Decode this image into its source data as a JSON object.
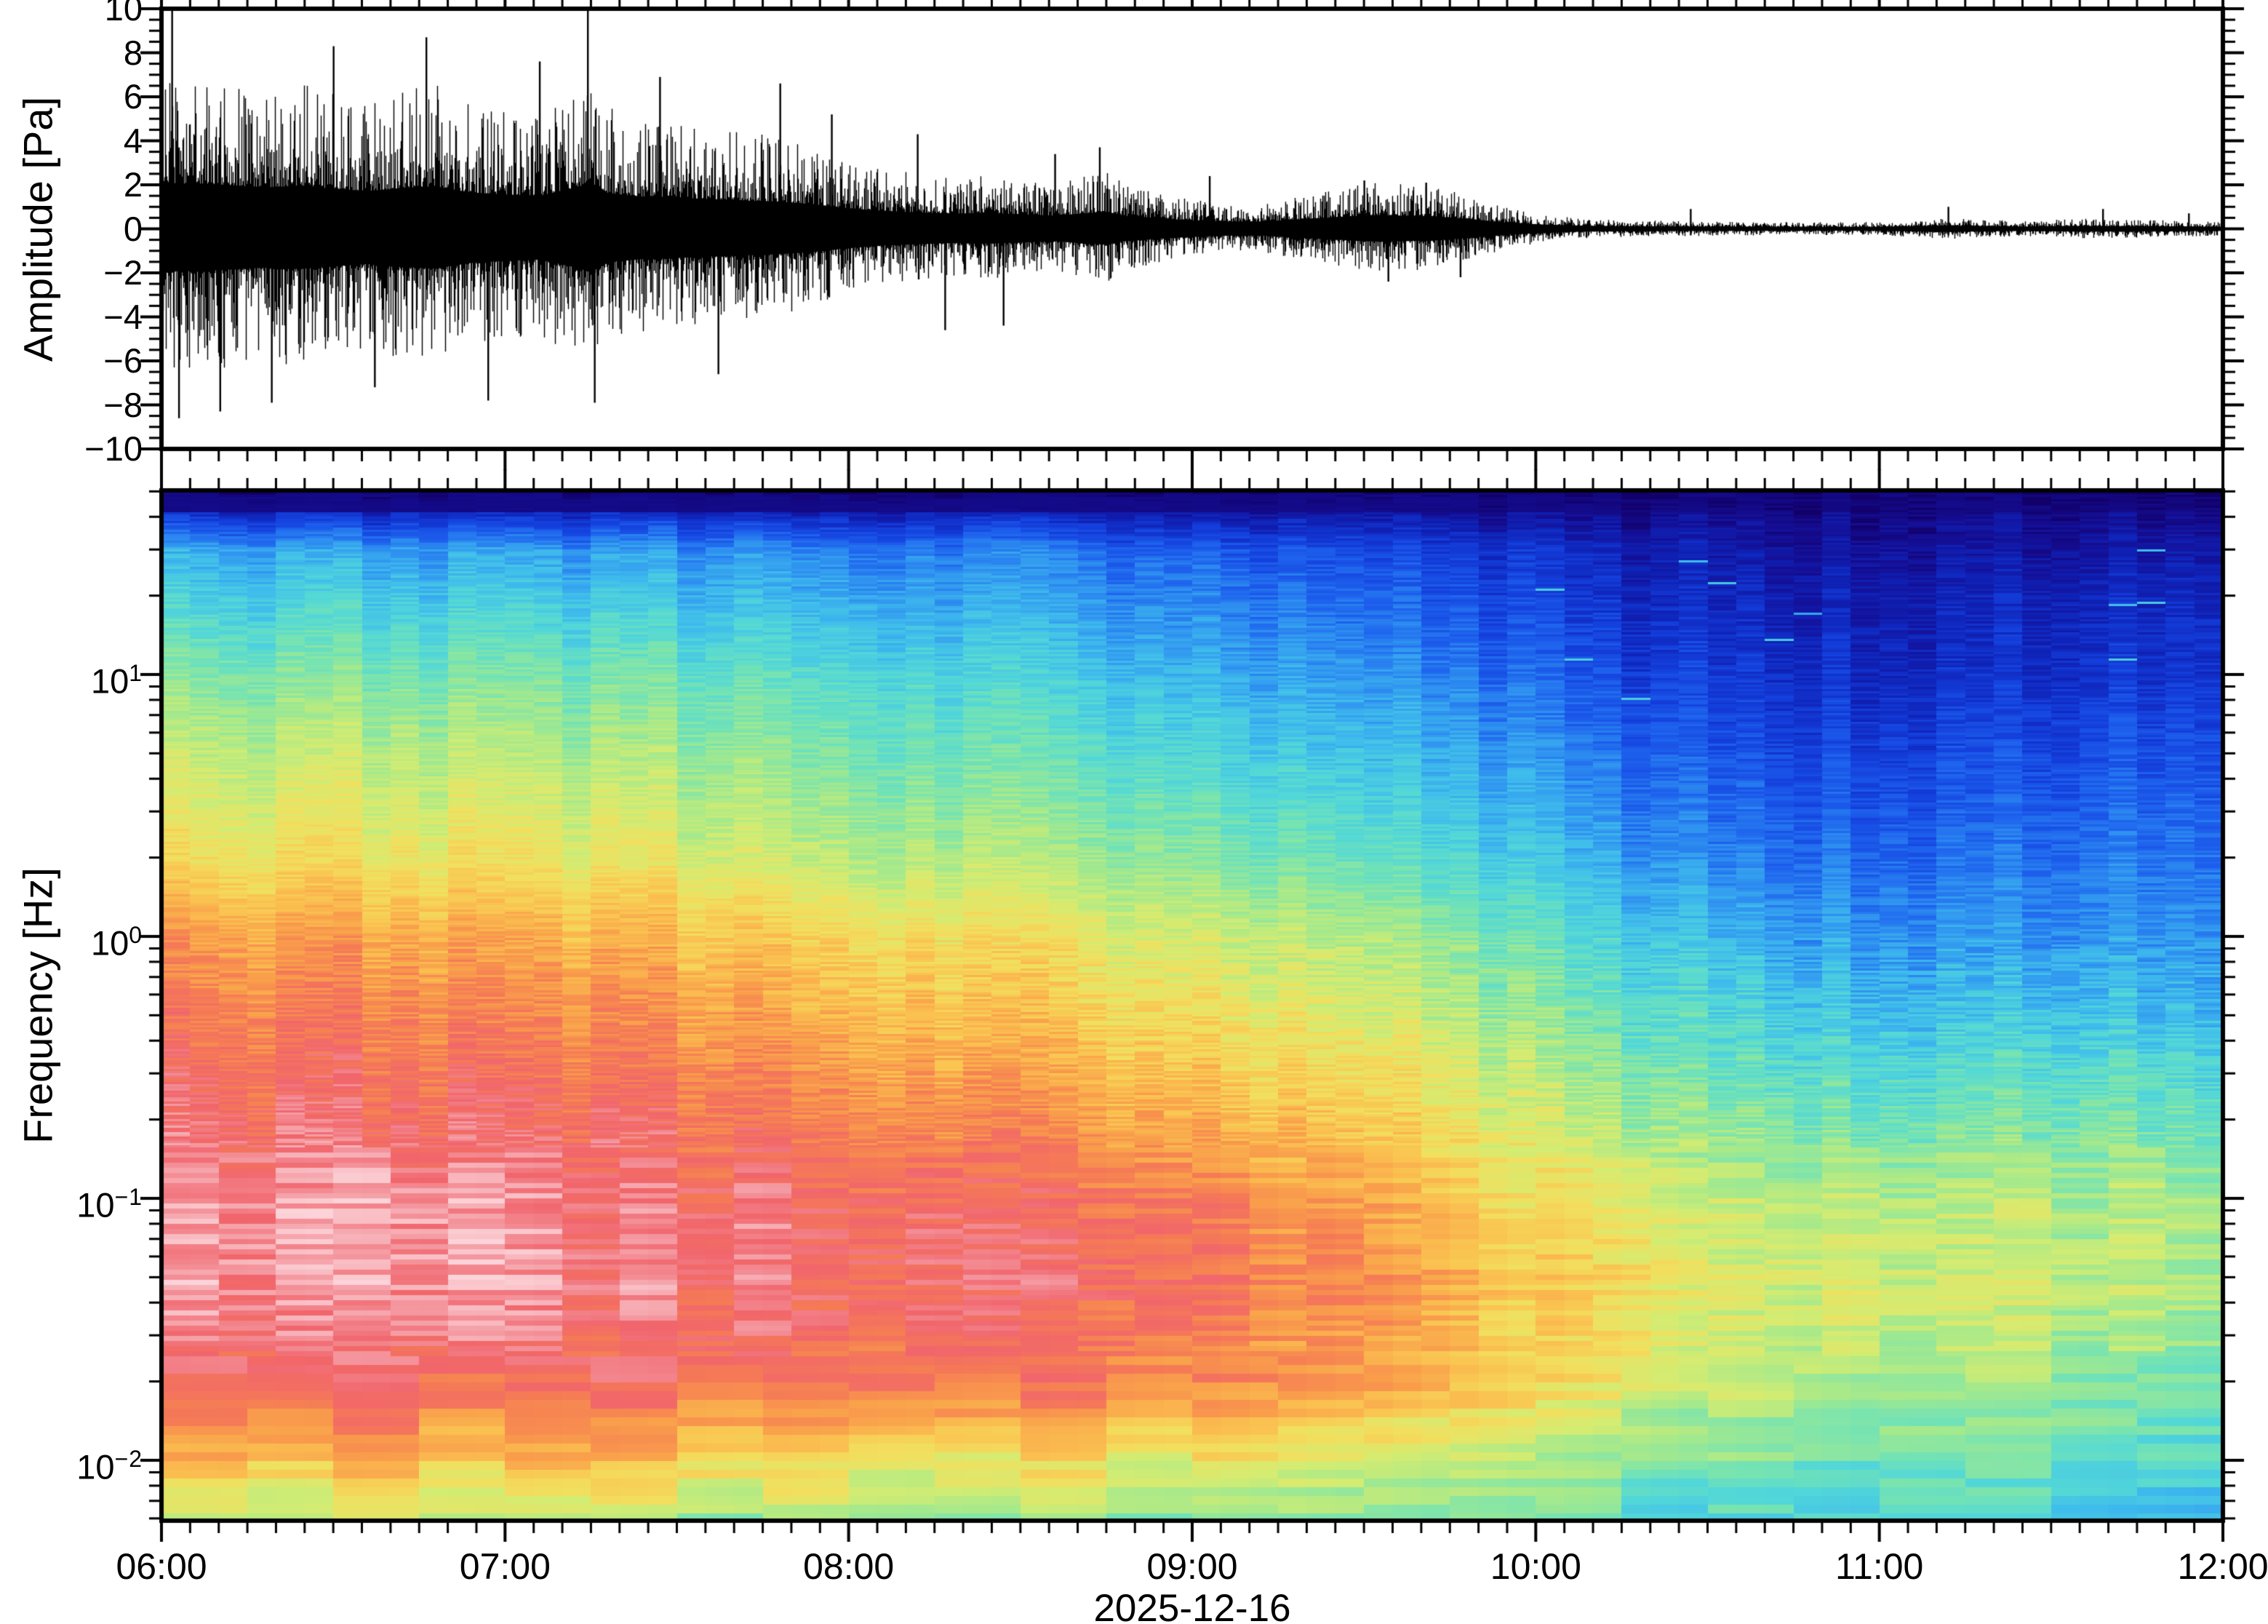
{
  "figure": {
    "background_color": "#ffffff",
    "frame_color": "#000000",
    "date_label": "2025-12-16",
    "waveform_panel": {
      "ylabel": "Amplitude [Pa]",
      "trace_color": "#000000",
      "ylim": [
        -10,
        10
      ],
      "ytick_values": [
        10,
        8,
        6,
        4,
        2,
        0,
        -2,
        -4,
        -6,
        -8,
        -10
      ],
      "ytick_labels": [
        "10",
        "8",
        "6",
        "4",
        "2",
        "0",
        "−2",
        "−4",
        "−6",
        "−8",
        "−10"
      ],
      "minor_tick_step_pa": 0.5
    },
    "spectrogram_panel": {
      "ylabel": "Frequency [Hz]",
      "freq_range_hz": [
        0.0059,
        50.4
      ],
      "ytick_labels": [
        {
          "base": "10",
          "exp": "1"
        },
        {
          "base": "10",
          "exp": "0"
        },
        {
          "base": "10",
          "exp": "−1"
        },
        {
          "base": "10",
          "exp": "−2"
        }
      ]
    },
    "time_axis": {
      "start": "06:00",
      "end": "12:00",
      "tick_labels": [
        "06:00",
        "07:00",
        "08:00",
        "09:00",
        "10:00",
        "11:00",
        "12:00"
      ],
      "minor_tick_minutes": 5
    }
  },
  "chart_data": [
    {
      "type": "line",
      "name": "infrasound-waveform",
      "ylabel": "Amplitude [Pa]",
      "xlabel": "2025-12-16",
      "xlim_hours": [
        6,
        12
      ],
      "ylim": [
        -10,
        10
      ],
      "x_hours": [
        6.0,
        6.05,
        6.1,
        6.2,
        6.3,
        6.4,
        6.5,
        6.6,
        6.7,
        6.8,
        6.9,
        7.0,
        7.1,
        7.2,
        7.25,
        7.3,
        7.4,
        7.5,
        7.6,
        7.7,
        7.8,
        7.9,
        8.0,
        8.1,
        8.2,
        8.3,
        8.4,
        8.5,
        8.6,
        8.7,
        8.75,
        8.8,
        8.9,
        9.0,
        9.1,
        9.2,
        9.3,
        9.4,
        9.5,
        9.55,
        9.6,
        9.7,
        9.8,
        9.9,
        10.0,
        10.1,
        10.2,
        10.4,
        10.6,
        10.8,
        11.0,
        11.2,
        11.4,
        11.6,
        11.8,
        12.0
      ],
      "envelope_peak_pa": [
        7.2,
        6.8,
        6.9,
        6.6,
        6.3,
        6.5,
        6.1,
        5.7,
        6.2,
        6.4,
        5.5,
        5.2,
        5.0,
        6.2,
        7.0,
        5.4,
        4.9,
        4.7,
        4.5,
        4.3,
        4.1,
        3.7,
        3.1,
        2.7,
        2.5,
        2.3,
        2.4,
        2.2,
        2.0,
        2.4,
        2.6,
        2.0,
        1.6,
        1.3,
        1.1,
        1.1,
        1.4,
        1.7,
        2.0,
        2.1,
        2.0,
        1.9,
        1.5,
        1.0,
        0.7,
        0.5,
        0.4,
        0.35,
        0.32,
        0.3,
        0.3,
        0.5,
        0.35,
        0.45,
        0.4,
        0.32
      ],
      "spikes_hour_pa": [
        [
          6.03,
          10.0
        ],
        [
          6.05,
          -8.6
        ],
        [
          6.17,
          -8.3
        ],
        [
          6.32,
          -7.9
        ],
        [
          6.5,
          8.3
        ],
        [
          6.62,
          -7.2
        ],
        [
          6.77,
          8.7
        ],
        [
          6.95,
          -7.8
        ],
        [
          7.1,
          7.6
        ],
        [
          7.24,
          10.0
        ],
        [
          7.26,
          -7.9
        ],
        [
          7.45,
          6.9
        ],
        [
          7.62,
          -6.6
        ],
        [
          7.8,
          6.6
        ],
        [
          7.95,
          5.2
        ],
        [
          8.2,
          4.3
        ],
        [
          8.28,
          -4.6
        ],
        [
          8.45,
          -4.4
        ],
        [
          8.6,
          3.4
        ],
        [
          8.73,
          3.7
        ],
        [
          9.05,
          2.4
        ],
        [
          9.5,
          2.2
        ],
        [
          9.57,
          -2.4
        ],
        [
          9.68,
          2.1
        ],
        [
          9.78,
          -2.2
        ],
        [
          10.45,
          0.9
        ],
        [
          11.2,
          1.0
        ],
        [
          11.65,
          0.9
        ],
        [
          11.9,
          0.7
        ]
      ]
    },
    {
      "type": "heatmap",
      "name": "spectrogram",
      "ylabel": "Frequency [Hz]",
      "xlabel": "2025-12-16",
      "x_hours": [
        6.0,
        6.5,
        7.0,
        7.5,
        8.0,
        8.5,
        9.0,
        9.5,
        10.0,
        10.5,
        11.0,
        11.5,
        12.0
      ],
      "freq_bands_hz": [
        50,
        30,
        20,
        10,
        5,
        2,
        1,
        0.5,
        0.2,
        0.1,
        0.05,
        0.02,
        0.01,
        0.005
      ],
      "value_scale": "relative spectral power, 0 = lowest (dark navy) to 1 = highest (light pink)",
      "relative_power": [
        [
          0.03,
          0.03,
          0.03,
          0.03,
          0.03,
          0.03,
          0.02,
          0.02,
          0.02,
          0.02,
          0.02,
          0.02,
          0.02
        ],
        [
          0.33,
          0.33,
          0.32,
          0.31,
          0.29,
          0.27,
          0.23,
          0.19,
          0.15,
          0.09,
          0.07,
          0.08,
          0.11
        ],
        [
          0.4,
          0.4,
          0.39,
          0.37,
          0.35,
          0.32,
          0.28,
          0.23,
          0.18,
          0.12,
          0.1,
          0.12,
          0.15
        ],
        [
          0.5,
          0.5,
          0.49,
          0.47,
          0.44,
          0.4,
          0.35,
          0.3,
          0.24,
          0.16,
          0.13,
          0.15,
          0.18
        ],
        [
          0.58,
          0.58,
          0.57,
          0.54,
          0.5,
          0.46,
          0.42,
          0.36,
          0.3,
          0.21,
          0.18,
          0.2,
          0.23
        ],
        [
          0.66,
          0.66,
          0.65,
          0.62,
          0.58,
          0.55,
          0.51,
          0.45,
          0.38,
          0.28,
          0.24,
          0.26,
          0.28
        ],
        [
          0.78,
          0.78,
          0.76,
          0.73,
          0.69,
          0.65,
          0.6,
          0.55,
          0.46,
          0.35,
          0.3,
          0.31,
          0.32
        ],
        [
          0.84,
          0.84,
          0.82,
          0.79,
          0.75,
          0.71,
          0.66,
          0.61,
          0.52,
          0.42,
          0.37,
          0.38,
          0.38
        ],
        [
          0.9,
          0.9,
          0.89,
          0.87,
          0.84,
          0.8,
          0.75,
          0.69,
          0.6,
          0.51,
          0.47,
          0.49,
          0.48
        ],
        [
          0.94,
          0.95,
          0.94,
          0.92,
          0.9,
          0.87,
          0.83,
          0.77,
          0.67,
          0.59,
          0.55,
          0.56,
          0.54
        ],
        [
          0.94,
          0.95,
          0.95,
          0.93,
          0.91,
          0.89,
          0.86,
          0.8,
          0.71,
          0.62,
          0.58,
          0.58,
          0.55
        ],
        [
          0.88,
          0.89,
          0.88,
          0.87,
          0.86,
          0.84,
          0.81,
          0.76,
          0.67,
          0.59,
          0.54,
          0.53,
          0.5
        ],
        [
          0.72,
          0.73,
          0.72,
          0.7,
          0.67,
          0.65,
          0.63,
          0.59,
          0.54,
          0.5,
          0.47,
          0.46,
          0.44
        ],
        [
          0.5,
          0.52,
          0.52,
          0.5,
          0.48,
          0.47,
          0.46,
          0.44,
          0.42,
          0.4,
          0.39,
          0.38,
          0.34
        ]
      ],
      "colormap_stops": [
        [
          0.0,
          "#120069"
        ],
        [
          0.06,
          "#140e94"
        ],
        [
          0.12,
          "#0f23b8"
        ],
        [
          0.18,
          "#1440dd"
        ],
        [
          0.24,
          "#1e63ee"
        ],
        [
          0.3,
          "#2f92f0"
        ],
        [
          0.36,
          "#3fbcec"
        ],
        [
          0.42,
          "#52d7d8"
        ],
        [
          0.48,
          "#74e3b4"
        ],
        [
          0.54,
          "#a5e98c"
        ],
        [
          0.6,
          "#d3ec72"
        ],
        [
          0.66,
          "#f2df5e"
        ],
        [
          0.72,
          "#fac250"
        ],
        [
          0.78,
          "#f99e4b"
        ],
        [
          0.84,
          "#f57b55"
        ],
        [
          0.9,
          "#f1656c"
        ],
        [
          0.95,
          "#f4949c"
        ],
        [
          1.0,
          "#fbd3d8"
        ]
      ]
    }
  ]
}
